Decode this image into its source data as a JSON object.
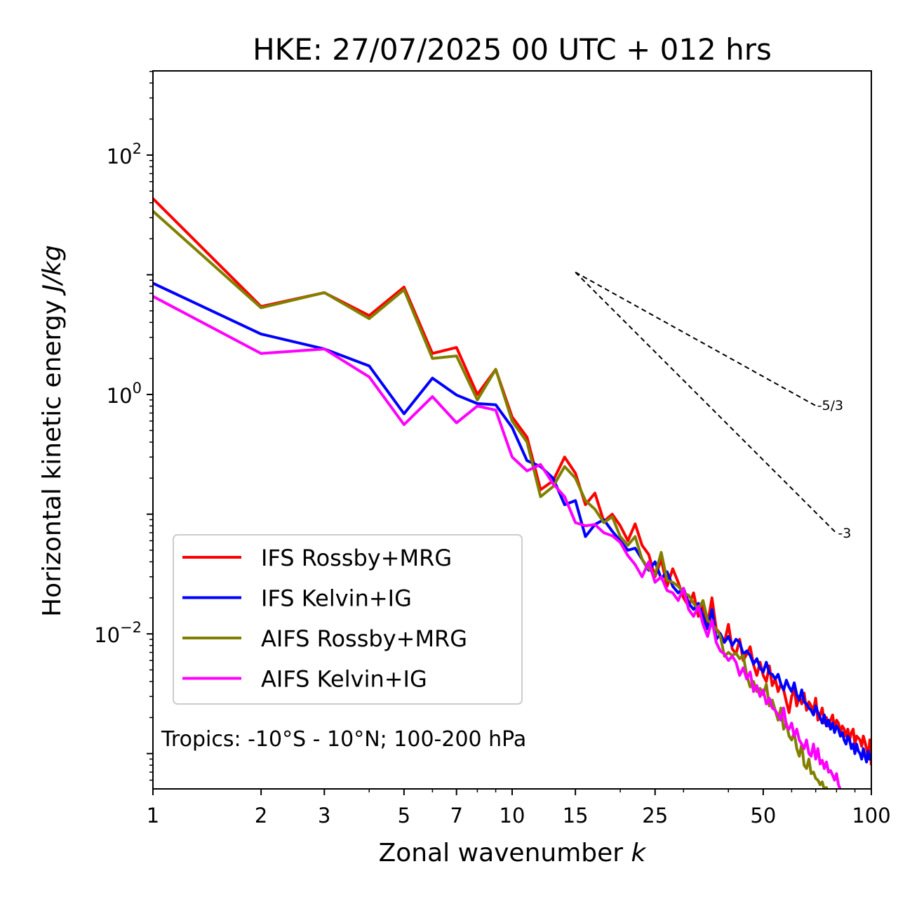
{
  "chart_data": {
    "type": "line",
    "title": "HKE: 27/07/2025 00 UTC + 012 hrs",
    "xlabel": "Zonal wavenumber",
    "xlabel_var": "k",
    "ylabel": "Horizontal kinetic energy",
    "ylabel_unit": "J/kg",
    "xscale": "log",
    "yscale": "log",
    "xlim": [
      1,
      100
    ],
    "ylim": [
      0.000507,
      505
    ],
    "grid": false,
    "legend_position": "lower-left",
    "x_ticks": [
      {
        "value": 1,
        "label": "1"
      },
      {
        "value": 2,
        "label": "2"
      },
      {
        "value": 3,
        "label": "3"
      },
      {
        "value": 5,
        "label": "5"
      },
      {
        "value": 7,
        "label": "7"
      },
      {
        "value": 10,
        "label": "10"
      },
      {
        "value": 15,
        "label": "15"
      },
      {
        "value": 25,
        "label": "25"
      },
      {
        "value": 50,
        "label": "50"
      },
      {
        "value": 100,
        "label": "100"
      }
    ],
    "y_ticks": [
      {
        "value": 100,
        "base": "10",
        "exp": "2"
      },
      {
        "value": 1,
        "base": "10",
        "exp": "0"
      },
      {
        "value": 0.01,
        "base": "10",
        "exp": "−2"
      }
    ],
    "annotation": "Tropics: -10°S - 10°N; 100-200 hPa",
    "reference_slopes": [
      {
        "label": "-5/3",
        "slope": -1.6667,
        "k_start": 15,
        "k_end": 70,
        "e_start": 10.5
      },
      {
        "label": "-3",
        "slope": -3,
        "k_start": 15,
        "k_end": 80,
        "e_start": 10.5
      }
    ],
    "series": [
      {
        "name": "IFS Rossby+MRG",
        "color": "#ff0000",
        "k_start": 1,
        "values": [
          43.3,
          5.43,
          7.09,
          4.56,
          7.9,
          2.2,
          2.47,
          1.0,
          1.62,
          0.65,
          0.44,
          0.16,
          0.19,
          0.3,
          0.22,
          0.12,
          0.15,
          0.087,
          0.1,
          0.08,
          0.06,
          0.083,
          0.055,
          0.046,
          0.03,
          0.042,
          0.025,
          0.035,
          0.027,
          0.02,
          0.017,
          0.022,
          0.014,
          0.017,
          0.012,
          0.02,
          0.011,
          0.01,
          0.0085,
          0.012,
          0.0075,
          0.0068,
          0.009,
          0.006,
          0.0068,
          0.0078,
          0.0055,
          0.0045,
          0.0058,
          0.0045,
          0.004,
          0.0054,
          0.0037,
          0.0042,
          0.0033,
          0.0038,
          0.0034,
          0.0027,
          0.0022,
          0.003,
          0.0034,
          0.0025,
          0.003,
          0.0026,
          0.0032,
          0.0023,
          0.0027,
          0.0025,
          0.0023,
          0.0029,
          0.0019,
          0.0021,
          0.0024,
          0.0018,
          0.002,
          0.0017,
          0.0019,
          0.0021,
          0.0016,
          0.0019,
          0.0018,
          0.0015,
          0.0017,
          0.0016,
          0.0014,
          0.0016,
          0.0013,
          0.0015,
          0.0016,
          0.0012,
          0.0014,
          0.00135,
          0.0013,
          0.00115,
          0.0014,
          0.00125,
          0.0011,
          0.0009,
          0.0013,
          0.0008
        ]
      },
      {
        "name": "IFS Kelvin+IG",
        "color": "#0000ff",
        "k_start": 1,
        "values": [
          8.5,
          3.2,
          2.4,
          1.73,
          0.69,
          1.37,
          0.99,
          0.84,
          0.82,
          0.53,
          0.28,
          0.25,
          0.2,
          0.12,
          0.13,
          0.065,
          0.082,
          0.09,
          0.072,
          0.06,
          0.05,
          0.052,
          0.042,
          0.034,
          0.04,
          0.029,
          0.033,
          0.025,
          0.022,
          0.024,
          0.018,
          0.016,
          0.018,
          0.014,
          0.011,
          0.016,
          0.009,
          0.01,
          0.0085,
          0.0095,
          0.008,
          0.009,
          0.0085,
          0.0068,
          0.0072,
          0.0066,
          0.0056,
          0.0062,
          0.0052,
          0.0048,
          0.0058,
          0.0047,
          0.0046,
          0.0042,
          0.0046,
          0.0038,
          0.0034,
          0.0041,
          0.0036,
          0.0033,
          0.0039,
          0.0031,
          0.0028,
          0.0034,
          0.0027,
          0.0026,
          0.0024,
          0.0023,
          0.0021,
          0.0025,
          0.0022,
          0.002,
          0.0018,
          0.0021,
          0.0017,
          0.0019,
          0.0016,
          0.0018,
          0.0015,
          0.0017,
          0.0016,
          0.0014,
          0.0015,
          0.0013,
          0.0012,
          0.0014,
          0.0013,
          0.0011,
          0.0012,
          0.001,
          0.0012,
          0.00105,
          0.001,
          0.0009,
          0.0011,
          0.00095,
          0.00085,
          0.00105,
          0.0009,
          0.001
        ]
      },
      {
        "name": "AIFS Rossby+MRG",
        "color": "#808000",
        "k_start": 1,
        "values": [
          34,
          5.3,
          7.1,
          4.3,
          7.5,
          2.0,
          2.1,
          0.9,
          1.62,
          0.6,
          0.4,
          0.14,
          0.17,
          0.25,
          0.2,
          0.13,
          0.11,
          0.085,
          0.095,
          0.065,
          0.055,
          0.065,
          0.042,
          0.035,
          0.031,
          0.048,
          0.028,
          0.027,
          0.025,
          0.022,
          0.021,
          0.018,
          0.016,
          0.019,
          0.013,
          0.012,
          0.011,
          0.0095,
          0.0065,
          0.007,
          0.0066,
          0.0069,
          0.0062,
          0.0066,
          0.0045,
          0.0036,
          0.004,
          0.0033,
          0.0035,
          0.0031,
          0.0038,
          0.0025,
          0.0028,
          0.0023,
          0.0019,
          0.0024,
          0.0016,
          0.0018,
          0.0014,
          0.0013,
          0.0015,
          0.0011,
          0.00095,
          0.0012,
          0.0008,
          0.00075,
          0.0009,
          0.00068,
          0.0007,
          0.00062,
          0.0006,
          0.00055,
          0.00058,
          0.0005,
          0.00052,
          0.00045,
          0.0005,
          0.00043,
          0.00045,
          0.0004
        ]
      },
      {
        "name": "AIFS Kelvin+IG",
        "color": "#ff00ff",
        "k_start": 1,
        "values": [
          6.6,
          2.2,
          2.4,
          1.4,
          0.56,
          0.96,
          0.58,
          0.8,
          0.74,
          0.3,
          0.23,
          0.26,
          0.18,
          0.14,
          0.085,
          0.08,
          0.082,
          0.07,
          0.066,
          0.058,
          0.045,
          0.038,
          0.03,
          0.04,
          0.027,
          0.03,
          0.023,
          0.022,
          0.019,
          0.024,
          0.016,
          0.014,
          0.017,
          0.012,
          0.0095,
          0.013,
          0.0085,
          0.0072,
          0.0068,
          0.006,
          0.0065,
          0.0058,
          0.0045,
          0.0052,
          0.0042,
          0.0048,
          0.0033,
          0.0037,
          0.003,
          0.0034,
          0.0026,
          0.0029,
          0.0024,
          0.0023,
          0.0021,
          0.0019,
          0.0024,
          0.0017,
          0.0016,
          0.0018,
          0.0014,
          0.0016,
          0.0013,
          0.0012,
          0.0011,
          0.0013,
          0.001,
          0.00095,
          0.0012,
          0.0009,
          0.0011,
          0.00082,
          0.00088,
          0.00075,
          0.00085,
          0.0007,
          0.00072,
          0.00066,
          0.0006,
          0.00068,
          0.00055,
          0.0005,
          0.00045
        ]
      }
    ]
  }
}
